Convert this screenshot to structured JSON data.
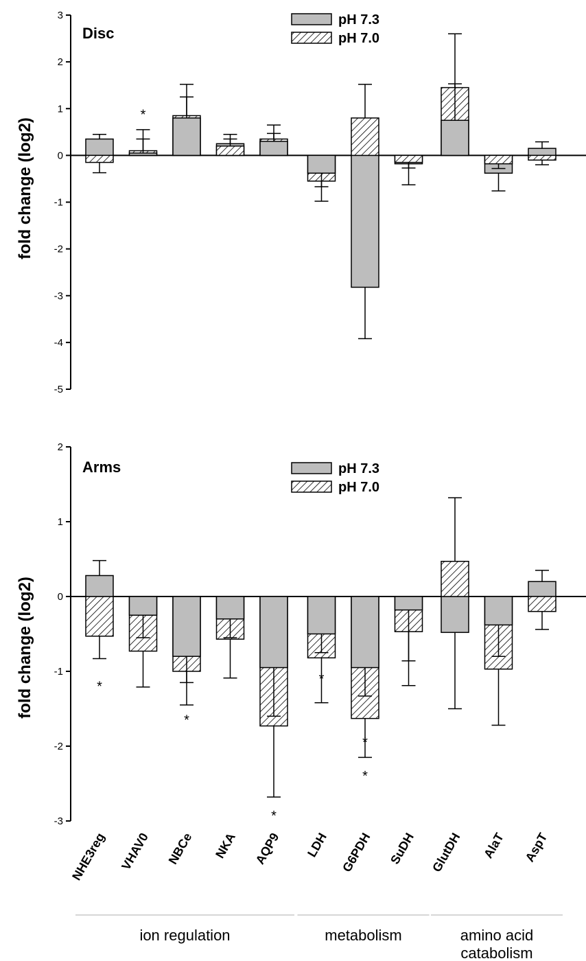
{
  "chart_data": [
    {
      "type": "bar",
      "title": "Disc",
      "ylabel": "fold change (log2)",
      "ylim": [
        -5,
        3
      ],
      "yticks": [
        3,
        2,
        1,
        0,
        -1,
        -2,
        -3,
        -4,
        -5
      ],
      "categories": [
        "NHE3reg",
        "VHAV0",
        "NBCe",
        "NKA",
        "AQP9",
        "LDH",
        "G6PDH",
        "SuDH",
        "GlutDH",
        "AlaT",
        "AspT"
      ],
      "legend": [
        "pH 7.3",
        "pH 7.0"
      ],
      "series": [
        {
          "name": "pH 7.3",
          "values": [
            0.35,
            0.05,
            0.8,
            0.25,
            0.3,
            -0.38,
            -2.82,
            -0.18,
            0.75,
            -0.38,
            0.15
          ],
          "error": [
            0.1,
            0.5,
            0.72,
            0.2,
            0.35,
            0.6,
            1.1,
            0.45,
            1.85,
            0.38,
            0.14
          ]
        },
        {
          "name": "pH 7.0",
          "values": [
            -0.15,
            0.1,
            0.85,
            0.2,
            0.35,
            -0.55,
            0.8,
            -0.15,
            1.45,
            -0.18,
            -0.1
          ],
          "error": [
            0.22,
            0.25,
            0.4,
            0.15,
            0.12,
            0.12,
            0.72,
            0.12,
            0.08,
            0.1,
            0.1
          ]
        }
      ],
      "stars": [
        {
          "category": "VHAV0",
          "y": 0.95,
          "text": "*"
        }
      ]
    },
    {
      "type": "bar",
      "title": "Arms",
      "ylabel": "fold change (log2)",
      "ylim": [
        -3,
        2
      ],
      "yticks": [
        2,
        1,
        0,
        -1,
        -2,
        -3
      ],
      "categories": [
        "NHE3reg",
        "VHAV0",
        "NBCe",
        "NKA",
        "AQP9",
        "LDH",
        "G6PDH",
        "SuDH",
        "GlutDH",
        "AlaT",
        "AspT"
      ],
      "legend": [
        "pH 7.3",
        "pH 7.0"
      ],
      "series": [
        {
          "name": "pH 7.3",
          "values": [
            0.28,
            -0.25,
            -0.8,
            -0.3,
            -0.95,
            -0.5,
            -0.95,
            -0.18,
            -0.48,
            -0.38,
            0.2
          ],
          "error": [
            0.2,
            0.3,
            0.35,
            0.25,
            0.65,
            0.25,
            0.38,
            0.68,
            1.02,
            0.42,
            0.15
          ]
        },
        {
          "name": "pH 7.0",
          "values": [
            -0.53,
            -0.73,
            -1.0,
            -0.57,
            -1.73,
            -0.82,
            -1.63,
            -0.47,
            0.47,
            -0.97,
            -0.2
          ],
          "error": [
            0.3,
            0.48,
            0.45,
            0.52,
            0.95,
            0.6,
            0.52,
            0.72,
            0.85,
            0.75,
            0.24
          ]
        }
      ],
      "stars": [
        {
          "category": "NHE3reg",
          "y": -1.15,
          "text": "*"
        },
        {
          "category": "NBCe",
          "y": -1.6,
          "text": "*"
        },
        {
          "category": "AQP9",
          "y": -2.88,
          "text": "*"
        },
        {
          "category": "LDH",
          "y": -1.05,
          "text": "*"
        },
        {
          "category": "G6PDH",
          "y": -1.9,
          "text": "*"
        },
        {
          "category": "G6PDH",
          "y": -2.35,
          "text": "*"
        }
      ]
    }
  ],
  "groups": [
    {
      "label": "ion regulation",
      "from": 0,
      "to": 4
    },
    {
      "label": "metabolism",
      "from": 5,
      "to": 7
    },
    {
      "label": "amino acid catabolism",
      "from": 8,
      "to": 10
    }
  ],
  "colors": {
    "bar73": "#bdbdbd",
    "hatch": "#000000"
  }
}
